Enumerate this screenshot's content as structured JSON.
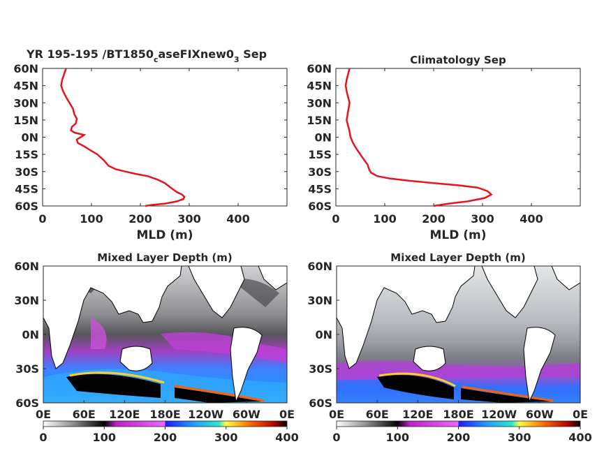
{
  "chart_data": [
    {
      "type": "line",
      "title": "YR 195-195 /BT1850",
      "title_sub": "c",
      "title_mid": "aseFIXnew0",
      "title_sub2": "3",
      "title_end": " Sep",
      "xlabel": "MLD (m)",
      "ylabel": "",
      "xlim": [
        0,
        500
      ],
      "ylim": [
        -60,
        60
      ],
      "xticks": [
        "0",
        "100",
        "200",
        "300",
        "400"
      ],
      "yticks": [
        "60N",
        "45N",
        "30N",
        "15N",
        "0N",
        "15S",
        "30S",
        "45S",
        "60S"
      ],
      "line_color": "#e8141c",
      "series": [
        {
          "name": "",
          "points": [
            [
              48,
              60
            ],
            [
              44,
              55
            ],
            [
              40,
              50
            ],
            [
              38,
              45
            ],
            [
              42,
              40
            ],
            [
              48,
              35
            ],
            [
              55,
              30
            ],
            [
              62,
              25
            ],
            [
              65,
              20
            ],
            [
              70,
              16
            ],
            [
              68,
              12
            ],
            [
              60,
              9
            ],
            [
              58,
              6
            ],
            [
              65,
              4
            ],
            [
              75,
              3
            ],
            [
              85,
              2
            ],
            [
              78,
              0
            ],
            [
              70,
              -2
            ],
            [
              72,
              -5
            ],
            [
              85,
              -8
            ],
            [
              100,
              -12
            ],
            [
              112,
              -15
            ],
            [
              125,
              -20
            ],
            [
              135,
              -25
            ],
            [
              150,
              -28
            ],
            [
              170,
              -30
            ],
            [
              190,
              -32
            ],
            [
              215,
              -34
            ],
            [
              235,
              -37
            ],
            [
              250,
              -40
            ],
            [
              262,
              -44
            ],
            [
              275,
              -48
            ],
            [
              285,
              -50
            ],
            [
              290,
              -52
            ],
            [
              288,
              -54
            ],
            [
              275,
              -56
            ],
            [
              250,
              -58
            ],
            [
              225,
              -59
            ],
            [
              210,
              -60
            ]
          ]
        }
      ]
    },
    {
      "type": "line",
      "title": "Climatology Sep",
      "xlabel": "MLD (m)",
      "ylabel": "",
      "xlim": [
        0,
        500
      ],
      "ylim": [
        -60,
        60
      ],
      "xticks": [
        "0",
        "100",
        "200",
        "300",
        "400"
      ],
      "yticks": [
        "60N",
        "45N",
        "30N",
        "15N",
        "0N",
        "15S",
        "30S",
        "45S",
        "60S"
      ],
      "line_color": "#e8141c",
      "series": [
        {
          "name": "",
          "points": [
            [
              28,
              60
            ],
            [
              25,
              55
            ],
            [
              22,
              50
            ],
            [
              20,
              45
            ],
            [
              22,
              40
            ],
            [
              25,
              35
            ],
            [
              28,
              30
            ],
            [
              26,
              25
            ],
            [
              24,
              20
            ],
            [
              22,
              15
            ],
            [
              25,
              10
            ],
            [
              28,
              5
            ],
            [
              30,
              0
            ],
            [
              35,
              -5
            ],
            [
              42,
              -10
            ],
            [
              50,
              -15
            ],
            [
              58,
              -20
            ],
            [
              65,
              -24
            ],
            [
              68,
              -28
            ],
            [
              72,
              -31
            ],
            [
              85,
              -34
            ],
            [
              110,
              -36
            ],
            [
              150,
              -38
            ],
            [
              200,
              -40
            ],
            [
              250,
              -42
            ],
            [
              290,
              -44
            ],
            [
              310,
              -47
            ],
            [
              318,
              -50
            ],
            [
              305,
              -53
            ],
            [
              270,
              -56
            ],
            [
              230,
              -58
            ],
            [
              200,
              -60
            ]
          ]
        }
      ]
    },
    {
      "type": "heatmap",
      "title": "Mixed Layer Depth (m)",
      "xticks": [
        "0E",
        "60E",
        "120E",
        "180E",
        "120W",
        "60W",
        "0E"
      ],
      "yticks": [
        "60N",
        "30N",
        "0N",
        "30S",
        "60S"
      ],
      "colorbar_ticks": [
        "0",
        "100",
        "200",
        "300",
        "400"
      ],
      "colorbar_range": [
        0,
        400
      ]
    },
    {
      "type": "heatmap",
      "title": "Mixed Layer Depth (m)",
      "xticks": [
        "0E",
        "60E",
        "120E",
        "180E",
        "120W",
        "60W",
        "0E"
      ],
      "yticks": [
        "60N",
        "30N",
        "0N",
        "30S",
        "60S"
      ],
      "colorbar_ticks": [
        "0",
        "100",
        "200",
        "300",
        "400"
      ],
      "colorbar_range": [
        0,
        400
      ]
    }
  ]
}
